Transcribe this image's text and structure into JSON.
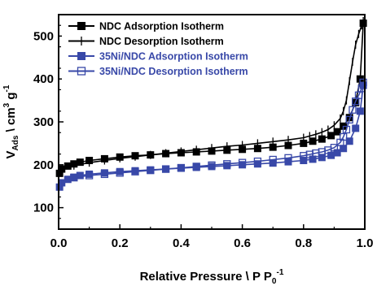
{
  "chart_data": {
    "type": "line",
    "xlabel": "Relative Pressure \\ P P",
    "xlabel_sub": "0",
    "xlabel_sup": "-1",
    "ylabel": "V",
    "ylabel_sub": "Ads",
    "ylabel_rest": " \\ cm",
    "ylabel_sup1": "3",
    "ylabel_rest2": " g",
    "ylabel_sup2": "-1",
    "xlim": [
      0.0,
      1.0
    ],
    "ylim": [
      50,
      550
    ],
    "xticks": [
      "0.0",
      "0.2",
      "0.4",
      "0.6",
      "0.8",
      "1.0"
    ],
    "yticks": [
      "100",
      "200",
      "300",
      "400",
      "500"
    ],
    "grid": false,
    "legend_position": "top-left",
    "series": [
      {
        "name": "NDC Adsorption Isotherm",
        "color": "#000000",
        "marker": "filled-square",
        "x": [
          0.003,
          0.01,
          0.03,
          0.05,
          0.07,
          0.1,
          0.15,
          0.2,
          0.25,
          0.3,
          0.35,
          0.4,
          0.45,
          0.5,
          0.55,
          0.6,
          0.65,
          0.7,
          0.75,
          0.8,
          0.83,
          0.86,
          0.89,
          0.91,
          0.93,
          0.95,
          0.97,
          0.985,
          0.995
        ],
        "y": [
          180,
          190,
          197,
          202,
          206,
          210,
          214,
          218,
          221,
          223,
          226,
          228,
          230,
          232,
          234,
          236,
          238,
          241,
          245,
          250,
          255,
          260,
          268,
          277,
          290,
          310,
          345,
          400,
          530
        ]
      },
      {
        "name": "NDC Desorption Isotherm",
        "color": "#000000",
        "marker": "cross-line",
        "x": [
          0.995,
          0.99,
          0.98,
          0.97,
          0.96,
          0.95,
          0.94,
          0.93,
          0.92,
          0.9,
          0.88,
          0.86,
          0.84,
          0.82,
          0.8,
          0.75,
          0.7,
          0.65,
          0.6,
          0.55,
          0.5,
          0.45,
          0.4,
          0.35,
          0.3,
          0.25,
          0.2,
          0.15,
          0.1,
          0.05
        ],
        "y": [
          535,
          525,
          505,
          480,
          440,
          395,
          350,
          325,
          308,
          292,
          282,
          276,
          271,
          267,
          263,
          258,
          254,
          250,
          246,
          243,
          239,
          235,
          231,
          227,
          223,
          219,
          215,
          210,
          205,
          198
        ]
      },
      {
        "name": "35Ni/NDC Adsorption Isotherm",
        "color": "#3848a8",
        "marker": "filled-square",
        "x": [
          0.003,
          0.01,
          0.03,
          0.05,
          0.07,
          0.1,
          0.15,
          0.2,
          0.25,
          0.3,
          0.35,
          0.4,
          0.45,
          0.5,
          0.55,
          0.6,
          0.65,
          0.7,
          0.75,
          0.8,
          0.83,
          0.86,
          0.89,
          0.91,
          0.93,
          0.95,
          0.97,
          0.985,
          0.995
        ],
        "y": [
          148,
          158,
          166,
          171,
          175,
          178,
          181,
          184,
          186,
          188,
          190,
          192,
          194,
          196,
          198,
          200,
          202,
          204,
          207,
          210,
          213,
          217,
          222,
          228,
          238,
          255,
          285,
          325,
          385
        ]
      },
      {
        "name": "35Ni/NDC Desorption Isotherm",
        "color": "#3848a8",
        "marker": "open-square",
        "x": [
          0.995,
          0.99,
          0.98,
          0.97,
          0.96,
          0.95,
          0.94,
          0.93,
          0.92,
          0.9,
          0.88,
          0.86,
          0.84,
          0.82,
          0.8,
          0.75,
          0.7,
          0.65,
          0.6,
          0.55,
          0.5,
          0.45,
          0.4,
          0.35,
          0.3,
          0.25,
          0.2,
          0.15,
          0.1,
          0.05
        ],
        "y": [
          392,
          378,
          362,
          348,
          328,
          305,
          282,
          265,
          252,
          240,
          234,
          230,
          227,
          224,
          221,
          216,
          212,
          208,
          205,
          202,
          199,
          196,
          193,
          190,
          187,
          184,
          181,
          178,
          175,
          170
        ]
      }
    ]
  }
}
